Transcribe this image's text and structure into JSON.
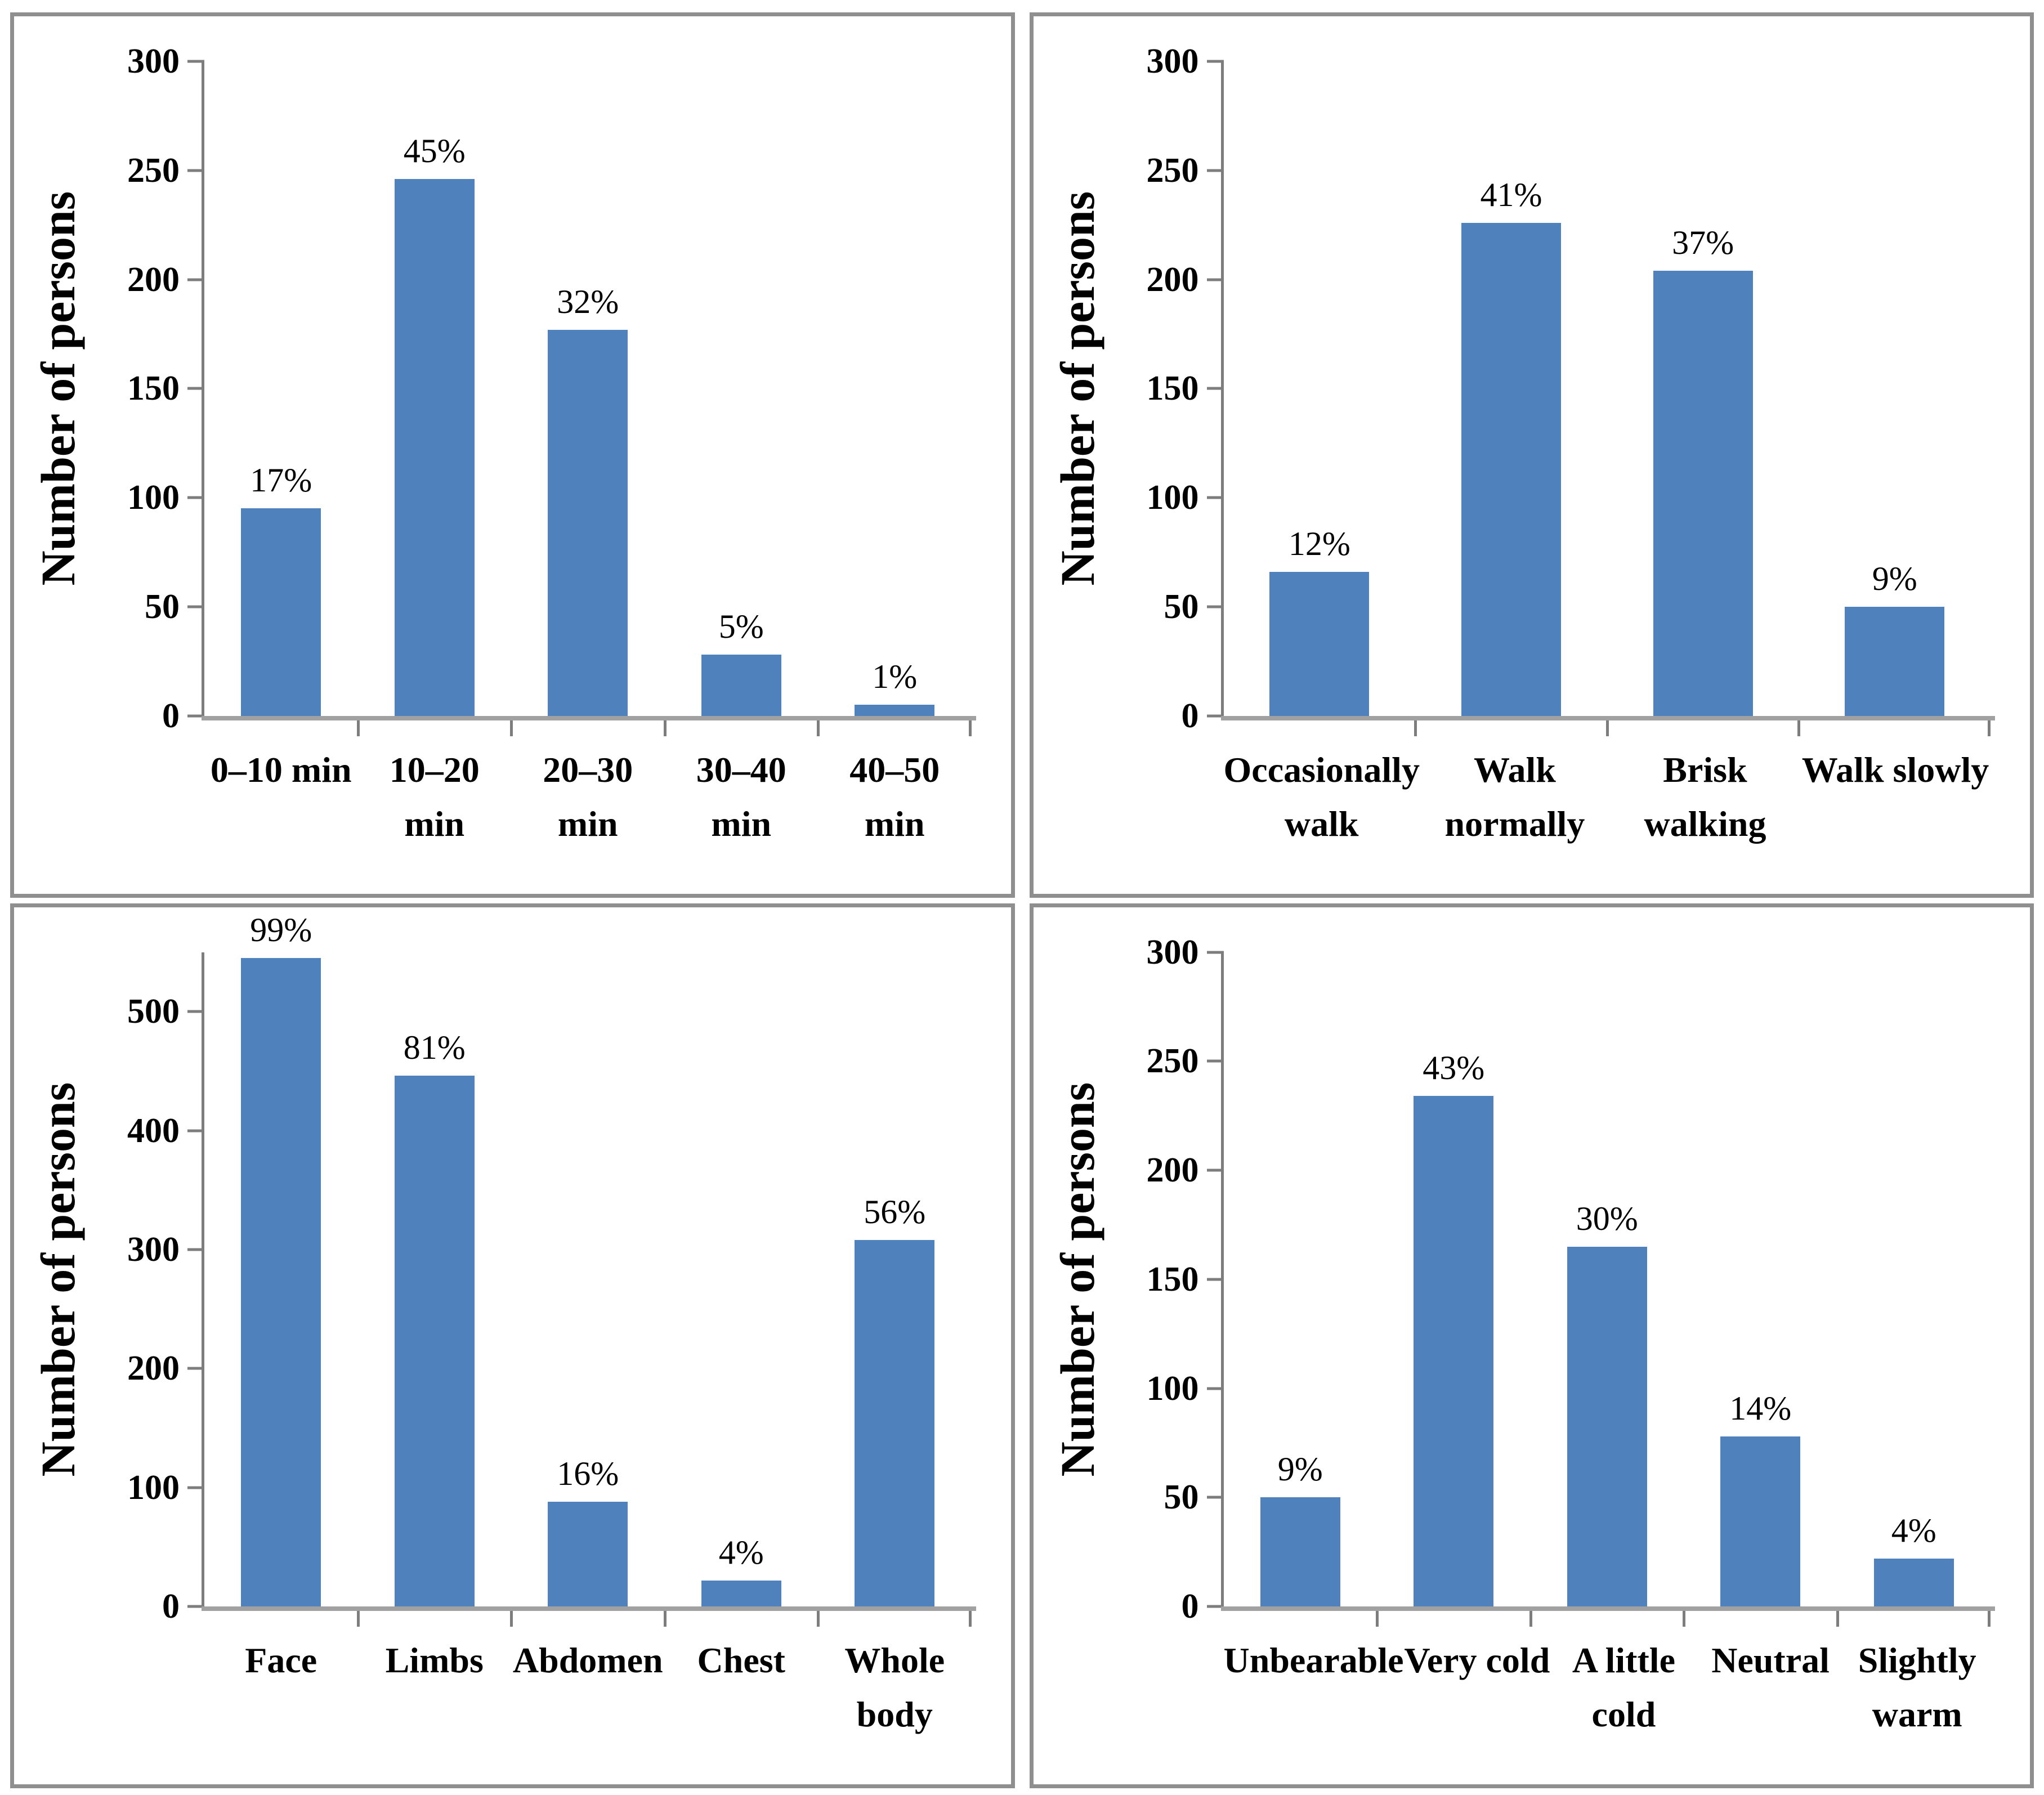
{
  "styles": {
    "bar_color": "#4f81bd",
    "axis_color": "#7d7d7d",
    "baseline_color": "#a1a1a1",
    "panel_border_color": "#8f8f8f",
    "text_color": "#000000",
    "background": "#ffffff"
  },
  "chart_data": [
    {
      "type": "bar",
      "position": "top-left",
      "ylabel": "Number of persons",
      "ylim": [
        0,
        300
      ],
      "yticks": [
        0,
        50,
        100,
        150,
        200,
        250,
        300
      ],
      "grid": false,
      "legend": null,
      "categories": [
        "0–10 min",
        "10–20\nmin",
        "20–30\nmin",
        "30–40\nmin",
        "40–50\nmin"
      ],
      "values": [
        95,
        246,
        177,
        28,
        5
      ],
      "data_labels": [
        "17%",
        "45%",
        "32%",
        "5%",
        "1%"
      ]
    },
    {
      "type": "bar",
      "position": "top-right",
      "ylabel": "Number of persons",
      "ylim": [
        0,
        300
      ],
      "yticks": [
        0,
        50,
        100,
        150,
        200,
        250,
        300
      ],
      "grid": false,
      "legend": null,
      "categories": [
        "Occasionally\nwalk",
        "Walk\nnormally",
        "Brisk\nwalking",
        "Walk slowly"
      ],
      "values": [
        66,
        226,
        204,
        50
      ],
      "data_labels": [
        "12%",
        "41%",
        "37%",
        "9%"
      ]
    },
    {
      "type": "bar",
      "position": "bottom-left",
      "ylabel": "Number of persons",
      "ylim": [
        0,
        550
      ],
      "yticks": [
        0,
        100,
        200,
        300,
        400,
        500
      ],
      "grid": false,
      "legend": null,
      "categories": [
        "Face",
        "Limbs",
        "Abdomen",
        "Chest",
        "Whole\nbody"
      ],
      "values": [
        545,
        446,
        88,
        22,
        308
      ],
      "data_labels": [
        "99%",
        "81%",
        "16%",
        "4%",
        "56%"
      ]
    },
    {
      "type": "bar",
      "position": "bottom-right",
      "ylabel": "Number of persons",
      "ylim": [
        0,
        300
      ],
      "yticks": [
        0,
        50,
        100,
        150,
        200,
        250,
        300
      ],
      "grid": false,
      "legend": null,
      "categories": [
        "Unbearable",
        "Very cold",
        "A little\ncold",
        "Neutral",
        "Slightly\nwarm"
      ],
      "values": [
        50,
        234,
        165,
        78,
        22
      ],
      "data_labels": [
        "9%",
        "43%",
        "30%",
        "14%",
        "4%"
      ]
    }
  ]
}
